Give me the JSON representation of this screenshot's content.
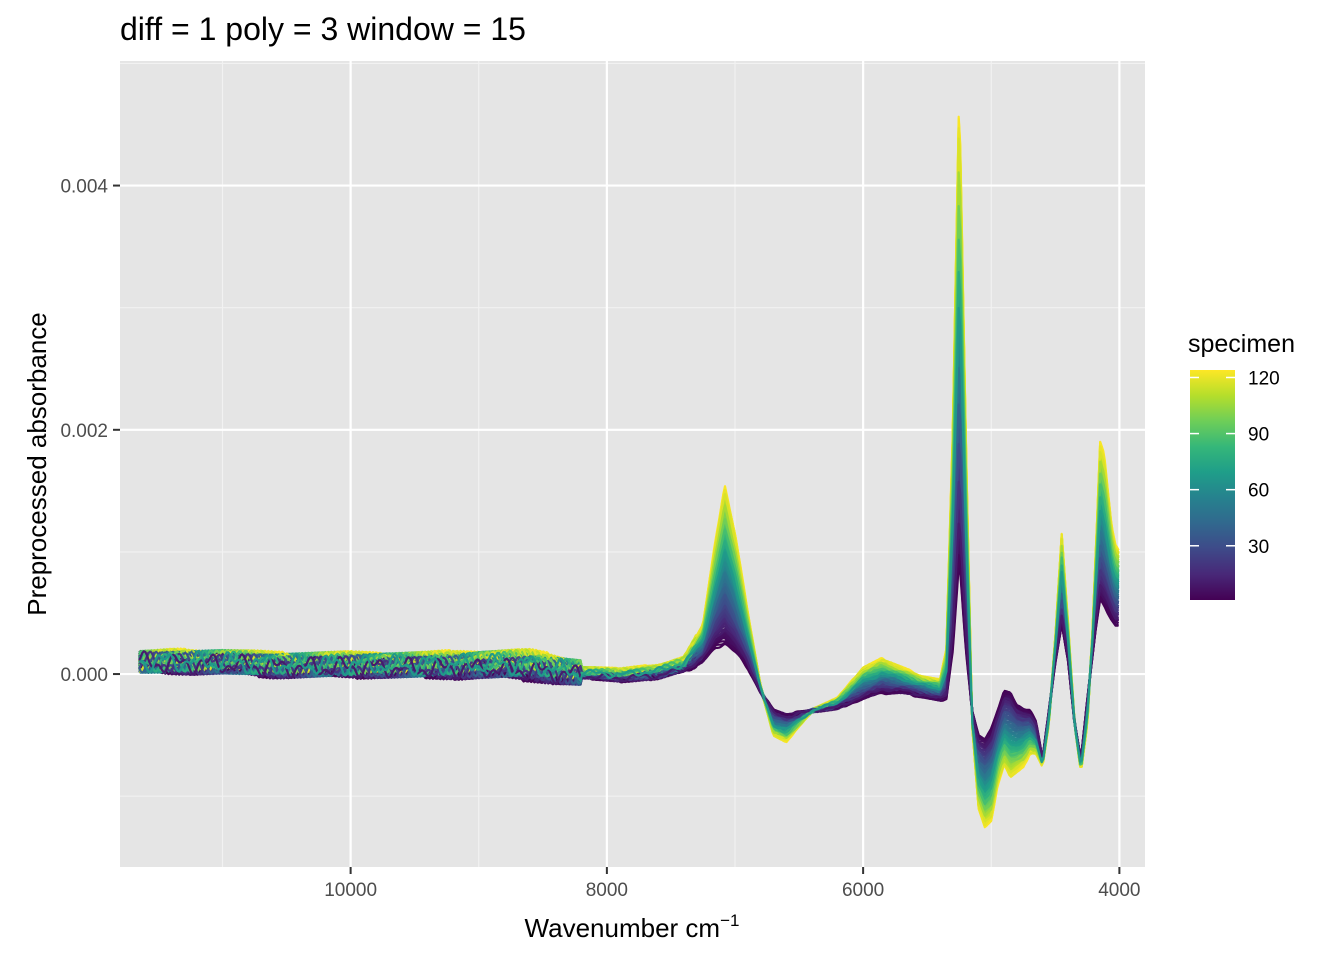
{
  "chart_data": {
    "type": "line",
    "title": "diff =  1 poly =  3 window =  15",
    "xlabel": "Wavenumber cm",
    "xlabel_superscript": "−1",
    "ylabel": "Preprocessed absorbance",
    "x_reversed": true,
    "xlim": [
      11800,
      3800
    ],
    "ylim": [
      -0.00158,
      0.00502
    ],
    "x_ticks": [
      10000,
      8000,
      6000,
      4000
    ],
    "x_tick_labels": [
      "10000",
      "8000",
      "6000",
      "4000"
    ],
    "y_ticks": [
      0.0,
      0.002,
      0.004
    ],
    "y_tick_labels": [
      "0.000",
      "0.002",
      "0.004"
    ],
    "grid": true,
    "legend": {
      "title": "specimen",
      "type": "colorbar",
      "placement": "right",
      "range": [
        1,
        124
      ],
      "ticks": [
        30,
        60,
        90,
        120
      ],
      "tick_labels": [
        "30",
        "60",
        "90",
        "120"
      ],
      "palette": [
        "#440154",
        "#482878",
        "#3e4a89",
        "#31688e",
        "#26828e",
        "#1f9e89",
        "#35b779",
        "#6ece58",
        "#b5de2b",
        "#fde725"
      ]
    },
    "series_count": 124,
    "spectrum_profile": {
      "x": [
        11650,
        11400,
        11000,
        10600,
        10200,
        9800,
        9400,
        9000,
        8600,
        8200,
        7900,
        7600,
        7400,
        7250,
        7150,
        7080,
        7000,
        6900,
        6800,
        6700,
        6600,
        6400,
        6200,
        6000,
        5850,
        5700,
        5550,
        5400,
        5350,
        5300,
        5250,
        5200,
        5150,
        5100,
        5050,
        5000,
        4950,
        4900,
        4850,
        4800,
        4750,
        4700,
        4650,
        4600,
        4550,
        4500,
        4450,
        4400,
        4350,
        4300,
        4250,
        4210,
        4180,
        4150,
        4120,
        4090,
        4060,
        4030,
        4000
      ],
      "y_low": [
        0.0001,
        8e-05,
        8e-05,
        5e-05,
        5e-05,
        5e-05,
        4e-05,
        4e-05,
        2e-05,
        -2e-05,
        -4e-05,
        -2e-05,
        3e-05,
        0.0001,
        0.00022,
        0.00025,
        0.00018,
        5e-05,
        -0.00015,
        -0.0003,
        -0.00033,
        -0.0003,
        -0.00028,
        -0.0002,
        -0.00015,
        -0.00015,
        -0.00018,
        -0.00022,
        -0.0002,
        0.0002,
        0.00095,
        0.0002,
        -0.0003,
        -0.0005,
        -0.00052,
        -0.00045,
        -0.0003,
        -0.00015,
        -0.00015,
        -0.00025,
        -0.00028,
        -0.0003,
        -0.0004,
        -0.0007,
        -0.0003,
        0.0001,
        0.0004,
        0.0001,
        -0.0004,
        -0.0007,
        -0.0002,
        0.00015,
        0.0004,
        0.0006,
        0.00055,
        0.0005,
        0.00045,
        0.0004,
        0.0004
      ],
      "y_high": [
        0.0001,
        0.00012,
        0.00012,
        0.0001,
        0.0001,
        0.0001,
        0.0001,
        0.00012,
        0.00012,
        4e-05,
        2e-05,
        6e-05,
        0.00012,
        0.0004,
        0.0011,
        0.00155,
        0.00115,
        0.0005,
        -0.0001,
        -0.0005,
        -0.00055,
        -0.0003,
        -0.0002,
        5e-05,
        0.00012,
        5e-05,
        -2e-05,
        -5e-05,
        0.0002,
        0.002,
        0.0048,
        0.002,
        -0.0004,
        -0.0011,
        -0.00125,
        -0.0012,
        -0.0009,
        -0.00075,
        -0.00085,
        -0.0008,
        -0.00075,
        -0.00065,
        -0.00065,
        -0.00075,
        -0.0004,
        0.0003,
        0.00115,
        0.0004,
        -0.0004,
        -0.0008,
        -0.0004,
        0.00035,
        0.0011,
        0.0019,
        0.0018,
        0.0015,
        0.0012,
        0.00105,
        0.001
      ]
    }
  }
}
